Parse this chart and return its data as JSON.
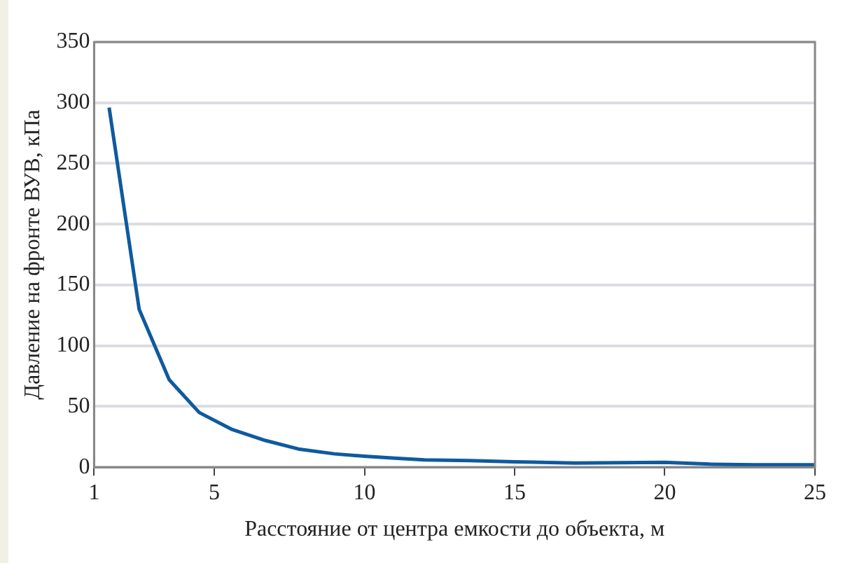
{
  "chart_data": {
    "type": "line",
    "xlabel": "Расстояние от центра емкости до объекта, м",
    "ylabel": "Давление на фронте ВУВ, кПа",
    "x": [
      1.5,
      2.5,
      3.5,
      4.5,
      5.6,
      6.7,
      7.8,
      9,
      10,
      11,
      12,
      13.5,
      15,
      17,
      20,
      21.5,
      23,
      25
    ],
    "series": [
      {
        "color": "#0f5a9e",
        "values": [
          296,
          130,
          72,
          45,
          31,
          22,
          15,
          11,
          9,
          7.5,
          6,
          5.5,
          4.5,
          3.5,
          4,
          2.5,
          2,
          2
        ]
      }
    ],
    "xlim": [
      1,
      25
    ],
    "xticks": [
      1,
      5,
      10,
      15,
      20,
      25
    ],
    "ylim": [
      0,
      350
    ],
    "yticks": [
      0,
      50,
      100,
      150,
      200,
      250,
      300,
      350
    ],
    "grid": "y",
    "legend": false,
    "marker": "none",
    "line_style": "solid"
  }
}
